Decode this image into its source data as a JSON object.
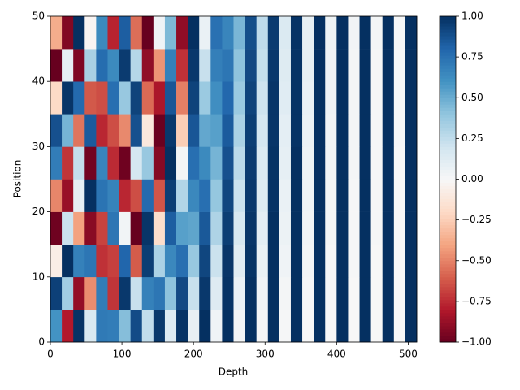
{
  "chart_data": {
    "type": "heatmap",
    "xlabel": "Depth",
    "ylabel": "Position",
    "colormap": "RdBu",
    "x": [
      0,
      16,
      32,
      48,
      64,
      80,
      96,
      112,
      128,
      144,
      160,
      176,
      192,
      208,
      224,
      240,
      256,
      272,
      288,
      304,
      320,
      336,
      352,
      368,
      384,
      400,
      416,
      432,
      448,
      464,
      480,
      496,
      512
    ],
    "y": [
      0,
      5,
      10,
      15,
      20,
      25,
      30,
      35,
      40,
      45,
      50
    ],
    "z": [
      [
        0.6,
        -0.8,
        0.99,
        0.16,
        0.71,
        0.7,
        0.43,
        0.9,
        0.25,
        0.97,
        0.14,
        0.99,
        0.08,
        1,
        0.04,
        1,
        0.02,
        1,
        0.01,
        1,
        0.01,
        1,
        0,
        1,
        0,
        1,
        0,
        1,
        0,
        1,
        0,
        1
      ],
      [
        0.94,
        0.35,
        -0.88,
        -0.47,
        0.7,
        -0.72,
        0.97,
        0.23,
        0.68,
        0.73,
        0.41,
        0.91,
        0.23,
        0.97,
        0.13,
        0.99,
        0.07,
        1,
        0.04,
        1,
        0.02,
        1,
        0.01,
        1,
        0.01,
        1,
        0,
        1,
        0,
        1,
        0,
        1
      ],
      [
        -0.07,
        1,
        0.68,
        0.73,
        -0.73,
        -0.69,
        0.8,
        -0.61,
        0.95,
        0.32,
        0.65,
        0.76,
        0.38,
        0.92,
        0.22,
        0.98,
        0.12,
        0.99,
        0.07,
        1,
        0.04,
        1,
        0.02,
        1,
        0.01,
        1,
        0.01,
        1,
        0,
        1,
        0,
        1
      ],
      [
        -0.98,
        0.22,
        -0.41,
        -0.91,
        -0.68,
        0.73,
        0.03,
        -1,
        0.98,
        -0.18,
        0.83,
        0.55,
        0.53,
        0.85,
        0.31,
        0.95,
        0.17,
        0.98,
        0.1,
        1,
        0.06,
        1,
        0.03,
        1,
        0.02,
        1,
        0.01,
        1,
        0.01,
        1,
        0,
        1
      ],
      [
        -0.49,
        -0.87,
        0.09,
        1,
        0.74,
        0.67,
        -0.76,
        -0.65,
        0.78,
        -0.63,
        0.95,
        0.3,
        0.65,
        0.76,
        0.39,
        0.92,
        0.22,
        0.97,
        0.13,
        0.99,
        0.07,
        1,
        0.04,
        1,
        0.02,
        1,
        0.01,
        1,
        0.01,
        1,
        0,
        1
      ],
      [
        0.7,
        -0.72,
        0.24,
        -0.97,
        0.66,
        -0.75,
        -0.98,
        0.18,
        0.38,
        -0.92,
        1,
        0.02,
        0.76,
        0.64,
        0.47,
        0.88,
        0.27,
        0.96,
        0.15,
        0.99,
        0.09,
        1,
        0.05,
        1,
        0.03,
        1,
        0.02,
        1,
        0.01,
        1,
        0,
        1
      ],
      [
        0.88,
        0.47,
        -0.54,
        0.84,
        -0.76,
        -0.65,
        -0.48,
        0.88,
        -0.11,
        -0.99,
        0.97,
        -0.25,
        0.86,
        0.52,
        0.55,
        0.84,
        0.32,
        0.95,
        0.18,
        0.98,
        0.1,
        0.99,
        0.06,
        1,
        0.03,
        1,
        0.02,
        1,
        0.01,
        1,
        0.01,
        1
      ],
      [
        -0.2,
        0.98,
        0.78,
        -0.62,
        -0.65,
        0.76,
        0.38,
        0.93,
        -0.57,
        -0.82,
        0.86,
        -0.51,
        0.93,
        0.37,
        0.62,
        0.79,
        0.37,
        0.93,
        0.21,
        0.98,
        0.12,
        0.99,
        0.07,
        1,
        0.04,
        1,
        0.02,
        1,
        0.01,
        1,
        0.01,
        1
      ],
      [
        -1,
        0.09,
        -0.94,
        0.33,
        0.77,
        0.64,
        0.96,
        0.29,
        -0.89,
        -0.45,
        0.68,
        -0.73,
        0.97,
        0.23,
        0.69,
        0.73,
        0.41,
        0.91,
        0.24,
        0.97,
        0.13,
        0.99,
        0.08,
        1,
        0.04,
        1,
        0.02,
        1,
        0.01,
        1,
        0.01,
        1
      ],
      [
        -0.37,
        -0.93,
        1,
        -0.02,
        0.64,
        -0.77,
        0.83,
        -0.56,
        -1,
        0.04,
        0.45,
        -0.89,
        1,
        0.07,
        0.75,
        0.66,
        0.46,
        0.89,
        0.26,
        0.96,
        0.15,
        0.99,
        0.08,
        1,
        0.05,
        1,
        0.03,
        1,
        0.02,
        1,
        0.01,
        1
      ]
    ],
    "xlim": [
      0,
      512
    ],
    "ylim": [
      0,
      50
    ],
    "xticks": [
      0,
      100,
      200,
      300,
      400,
      500
    ],
    "yticks": [
      0,
      10,
      20,
      30,
      40,
      50
    ],
    "clim": [
      -1,
      1
    ],
    "cticks": [
      {
        "value": -1,
        "label": "−1.00"
      },
      {
        "value": -0.75,
        "label": "−0.75"
      },
      {
        "value": -0.5,
        "label": "−0.50"
      },
      {
        "value": -0.25,
        "label": "−0.25"
      },
      {
        "value": 0,
        "label": "0.00"
      },
      {
        "value": 0.25,
        "label": "0.25"
      },
      {
        "value": 0.5,
        "label": "0.50"
      },
      {
        "value": 0.75,
        "label": "0.75"
      },
      {
        "value": 1,
        "label": "1.00"
      }
    ]
  }
}
